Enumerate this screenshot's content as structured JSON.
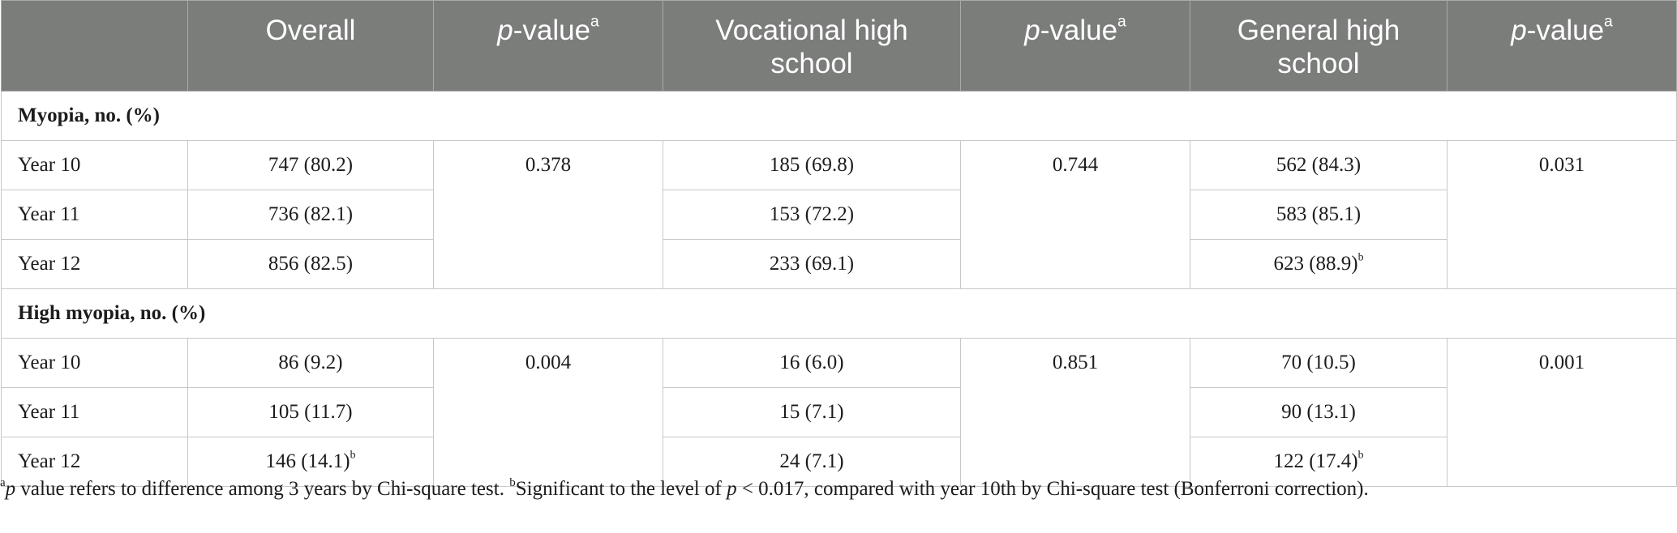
{
  "header": {
    "col0": "",
    "overall": "Overall",
    "pvalue_p": "p",
    "pvalue_rest": "-value",
    "pvalue_sup": "a",
    "vocational": "Vocational high school",
    "general": "General high school"
  },
  "sections": [
    {
      "title": "Myopia, no. (%)",
      "p_overall": "0.378",
      "p_vocational": "0.744",
      "p_general": "0.031",
      "rows": [
        {
          "label": "Year 10",
          "overall": "747 (80.2)",
          "overall_sup": "",
          "vocational": "185 (69.8)",
          "general": "562 (84.3)",
          "general_sup": ""
        },
        {
          "label": "Year 11",
          "overall": "736 (82.1)",
          "overall_sup": "",
          "vocational": "153 (72.2)",
          "general": "583 (85.1)",
          "general_sup": ""
        },
        {
          "label": "Year 12",
          "overall": "856 (82.5)",
          "overall_sup": "",
          "vocational": "233 (69.1)",
          "general": "623 (88.9)",
          "general_sup": "b"
        }
      ]
    },
    {
      "title": "High myopia, no. (%)",
      "p_overall": "0.004",
      "p_vocational": "0.851",
      "p_general": "0.001",
      "rows": [
        {
          "label": "Year 10",
          "overall": "86 (9.2)",
          "overall_sup": "",
          "vocational": "16 (6.0)",
          "general": "70 (10.5)",
          "general_sup": ""
        },
        {
          "label": "Year 11",
          "overall": "105 (11.7)",
          "overall_sup": "",
          "vocational": "15 (7.1)",
          "general": "90 (13.1)",
          "general_sup": ""
        },
        {
          "label": "Year 12",
          "overall": "146 (14.1)",
          "overall_sup": "b",
          "vocational": "24 (7.1)",
          "general": "122 (17.4)",
          "general_sup": "b"
        }
      ]
    }
  ],
  "footnote": {
    "a_sup": "a",
    "a_p": "p",
    "a_text": " value refers to difference among 3 years by Chi-square test. ",
    "b_sup": "b",
    "b_text1": "Significant to the level of ",
    "b_p": "p",
    "b_text2": " < 0.017, compared with year 10th by Chi-square test (Bonferroni correction)."
  }
}
